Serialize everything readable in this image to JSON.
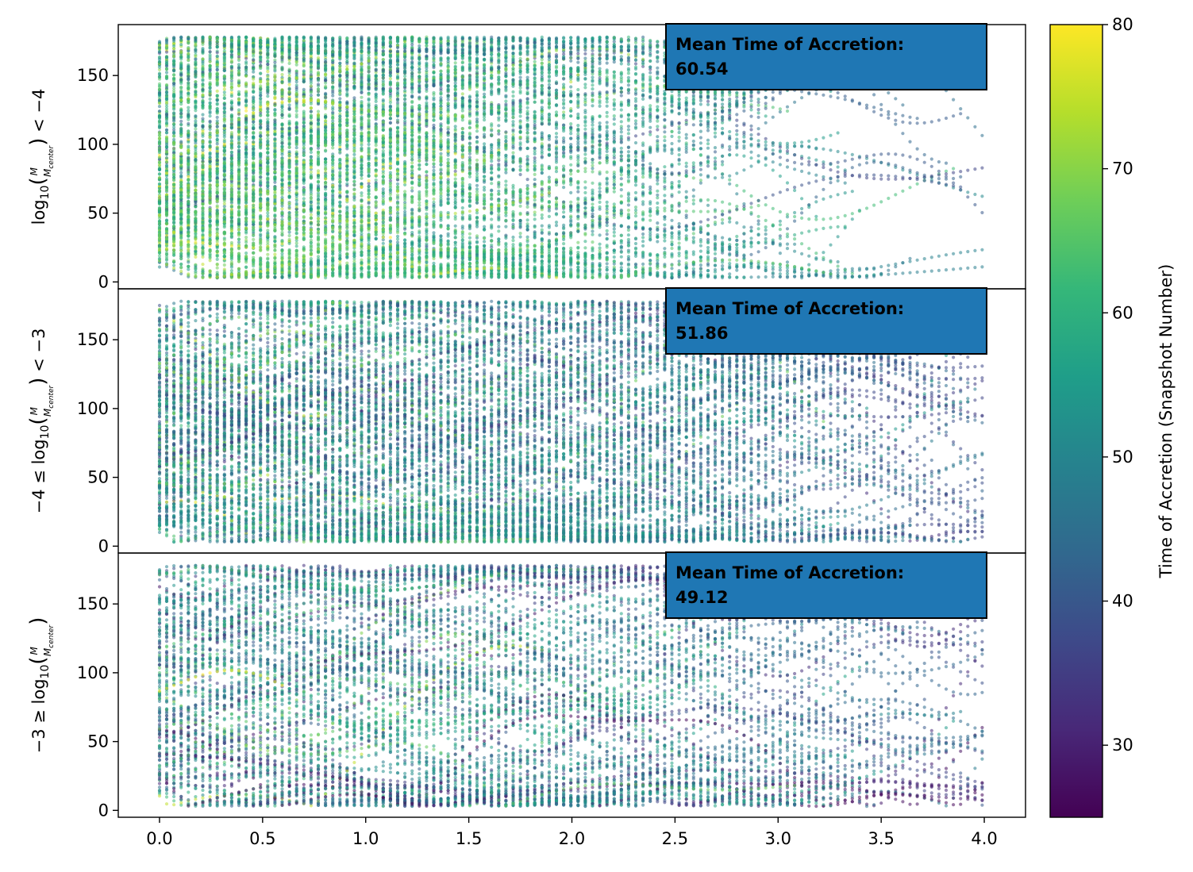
{
  "chart_data": {
    "type": "scatter",
    "xlim": [
      -0.2,
      4.2
    ],
    "ylim": [
      -5,
      187
    ],
    "xticks": [
      "0.0",
      "0.5",
      "1.0",
      "1.5",
      "2.0",
      "2.5",
      "3.0",
      "3.5",
      "4.0"
    ],
    "yticks": [
      "0",
      "50",
      "100",
      "150"
    ],
    "shared_x": true,
    "grid": false,
    "colormap": "viridis",
    "colorbar": {
      "label": "Time of Accretion (Snapshot Number)",
      "range": [
        25,
        80
      ],
      "ticks": [
        "30",
        "40",
        "50",
        "60",
        "70",
        "80"
      ]
    },
    "panels": [
      {
        "ylabel": {
          "pre": "",
          "log": "log",
          "sub": "10",
          "num": "M",
          "den": "M",
          "den_sub": "center",
          "post": " < −4"
        },
        "annotation": {
          "line1": "Mean Time of Accretion:",
          "line2": " 60.54"
        },
        "mean_time": 60.54
      },
      {
        "ylabel": {
          "pre": "−4 ≤ ",
          "log": "log",
          "sub": "10",
          "num": "M",
          "den": "M",
          "den_sub": "center",
          "post": " < −3"
        },
        "annotation": {
          "line1": "Mean Time of Accretion:",
          "line2": " 51.86"
        },
        "mean_time": 51.86
      },
      {
        "ylabel": {
          "pre": "−3 ≥ ",
          "log": "log",
          "sub": "10",
          "num": "M",
          "den": "M",
          "den_sub": "center",
          "post": ""
        },
        "annotation": {
          "line1": "Mean Time of Accretion:",
          "line2": " 49.12"
        },
        "mean_time": 49.12
      }
    ]
  },
  "colors": {
    "annotation_box": "#1f77b4",
    "viridis": [
      "#440154",
      "#482878",
      "#3e4989",
      "#31688e",
      "#26828e",
      "#1f9e89",
      "#35b779",
      "#6ece58",
      "#b5de2b",
      "#fde725"
    ]
  }
}
